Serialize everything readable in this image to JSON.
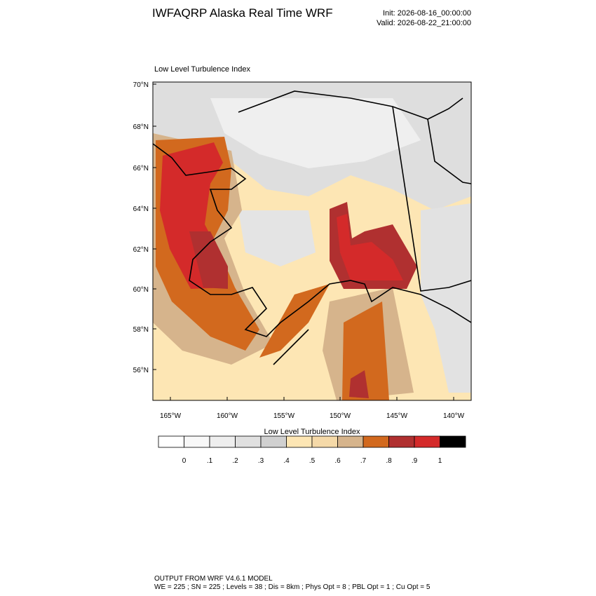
{
  "header": {
    "title": "IWFAQRP Alaska Real Time WRF",
    "init": "Init: 2026-08-16_00:00:00",
    "valid": "Valid: 2026-08-22_21:00:00"
  },
  "map": {
    "title": "Low Level Turbulence Index",
    "lat_labels": [
      "70°N",
      "68°N",
      "66°N",
      "64°N",
      "62°N",
      "60°N",
      "58°N",
      "56°N"
    ],
    "lon_labels": [
      "165°W",
      "160°W",
      "155°W",
      "150°W",
      "145°W",
      "140°W"
    ]
  },
  "colorbar": {
    "title": "Low Level Turbulence Index",
    "labels": [
      "0",
      ".1",
      ".2",
      ".3",
      ".4",
      ".5",
      ".6",
      ".7",
      ".8",
      ".9",
      "1"
    ],
    "colors": [
      "#ffffff",
      "#f8f8f8",
      "#eeeeee",
      "#e0e0e0",
      "#d0d0d0",
      "#fde6b4",
      "#f5d9a8",
      "#d6b48c",
      "#d2691e",
      "#b03030",
      "#d42a2a",
      "#000000"
    ]
  },
  "footer": {
    "line1": "OUTPUT FROM WRF V4.6.1 MODEL",
    "line2": "WE = 225 ; SN = 225 ; Levels = 38 ; Dis = 8km ; Phys Opt = 8 ; PBL Opt = 1 ; Cu Opt = 5"
  }
}
